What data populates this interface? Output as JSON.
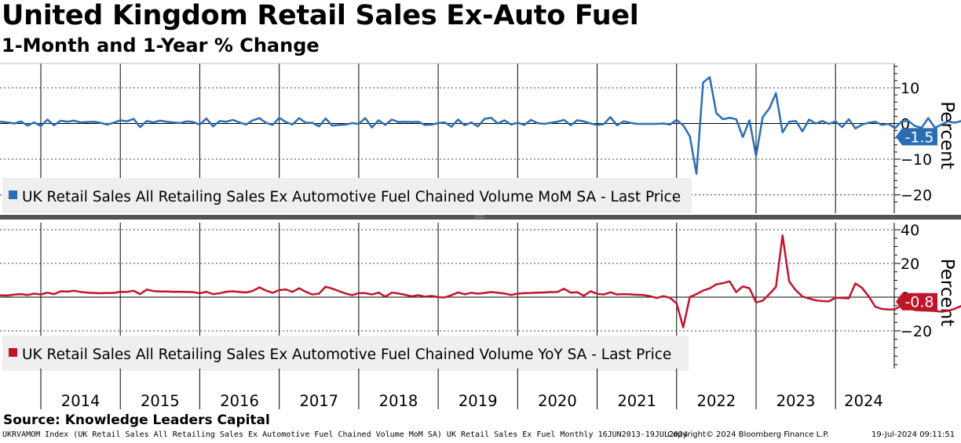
{
  "header": {
    "title": "United Kingdom Retail Sales Ex-Auto Fuel",
    "subtitle": "1-Month and 1-Year % Change"
  },
  "footer": {
    "source": "Source: Knowledge Leaders Capital",
    "ticker_info": "UKRVAMOM Index (UK Retail Sales All Retailing Sales Ex Automotive Fuel Chained Volume MoM SA) UK Retail Sales Ex Fuel  Monthly 16JUN2013-19JUL2024",
    "copyright": "Copyright© 2024 Bloomberg Finance L.P.",
    "timestamp": "19-Jul-2024 09:11:51"
  },
  "chart_data": [
    {
      "type": "line",
      "panel": "top",
      "legend": "UK Retail Sales All Retailing Sales Ex Automotive Fuel Chained Volume MoM SA - Last Price",
      "ylabel": "Percent",
      "ylim": [
        -23,
        16
      ],
      "yticks": [
        10,
        0,
        -10,
        -20
      ],
      "grid": true,
      "x_start": "2013-06",
      "last_value_label": "-1.5",
      "color": "#2a6db3",
      "series": [
        {
          "name": "UK Retail Sales All Retailing Sales Ex Automotive Fuel Chained Volume MoM SA - Last Price",
          "values": [
            0.5,
            0.5,
            0.3,
            0,
            0.6,
            -0.6,
            0.3,
            -0.7,
            1.1,
            -0.5,
            0.8,
            0.5,
            0.8,
            0.3,
            0.4,
            0.5,
            0.2,
            -0.3,
            0.2,
            0.9,
            0.6,
            1.3,
            -1.0,
            0.7,
            0.3,
            0.8,
            0.5,
            0.3,
            0.1,
            0.6,
            0.4,
            -0.3,
            1.4,
            -0.8,
            0.7,
            0.5,
            1.0,
            0.3,
            -0.3,
            0.9,
            1.5,
            0.2,
            -0.4,
            1.6,
            0.4,
            -0.3,
            1.5,
            0.2,
            0.2,
            -0.8,
            1.4,
            -0.6,
            -0.4,
            -0.3,
            0.1,
            -0.1,
            1.5,
            -1.1,
            0.9,
            -0.4,
            1.1,
            0.4,
            0.5,
            0.4,
            0.5,
            -0.4,
            -0.3,
            0.1,
            0.3,
            -0.9,
            1.1,
            -0.5,
            0.3,
            -0.8,
            1.3,
            1.6,
            0.0,
            0.9,
            -0.3,
            0.2,
            -0.4,
            1.0,
            0.1,
            -0.1,
            0.2,
            0.5,
            1.0,
            -0.5,
            0.9,
            0.6,
            0.0,
            -0.4,
            -0.2,
            1.8,
            -0.5,
            0.6,
            0.2,
            -0.1,
            -0.1,
            -0.1,
            -0.1,
            0.0,
            -0.3,
            1.0,
            -0.5,
            -3.6,
            -14.1,
            11.5,
            13.0,
            2.9,
            1.2,
            1.6,
            1.2,
            -3.8,
            0.9,
            -9.1,
            1.8,
            4.2,
            8.5,
            -2.5,
            0.5,
            0.7,
            -2.2,
            1.1,
            0.0,
            0.7,
            -0.1,
            0.6,
            -1.0,
            1.2,
            -1.4,
            -0.3,
            0.2,
            0.5,
            -0.4,
            -0.1,
            -1.3,
            0.6,
            0.7,
            -0.7,
            -1.2,
            1.5,
            -1.2,
            -0.3,
            0.6,
            0.2,
            0.7,
            -0.2,
            0.5,
            -1.1,
            1.1,
            -0.3,
            0.7,
            -1.3,
            0.2,
            1.6,
            -3.6,
            3.6,
            0.1,
            -0.3,
            -0.5,
            2.9,
            -1.5
          ]
        }
      ]
    },
    {
      "type": "line",
      "panel": "bottom",
      "legend": "UK Retail Sales All Retailing Sales Ex Automotive Fuel Chained Volume YoY SA - Last Price",
      "ylabel": "Percent",
      "ylim": [
        -40,
        45
      ],
      "yticks": [
        40,
        20,
        0,
        -20
      ],
      "grid": true,
      "x_start": "2013-06",
      "last_value_label": "-0.8",
      "color": "#c0142b",
      "series": [
        {
          "name": "UK Retail Sales All Retailing Sales Ex Automotive Fuel Chained Volume YoY SA - Last Price",
          "values": [
            1.0,
            1.1,
            1.0,
            1.5,
            1.8,
            1.3,
            2.1,
            1.6,
            2.7,
            1.8,
            3.5,
            3.3,
            3.8,
            3.1,
            2.7,
            2.5,
            2.3,
            2.5,
            2.5,
            3.2,
            3.1,
            3.8,
            1.8,
            4.5,
            3.6,
            3.4,
            3.4,
            3.2,
            3.2,
            3.1,
            3.0,
            2.3,
            3.2,
            1.8,
            2.3,
            3.2,
            3.5,
            3.1,
            2.8,
            3.7,
            5.8,
            3.9,
            2.6,
            4.2,
            4.6,
            3.1,
            5.3,
            3.2,
            1.6,
            2.1,
            6.2,
            5.1,
            3.6,
            2.2,
            1.2,
            2.4,
            2.4,
            1.6,
            2.7,
            0.3,
            2.7,
            2.2,
            1.4,
            0.5,
            1.2,
            0.3,
            0.7,
            0.0,
            -0.2,
            1.2,
            2.8,
            1.7,
            2.6,
            2.1,
            2.5,
            3.0,
            2.6,
            2.2,
            1.3,
            2.1,
            2.4,
            2.5,
            2.7,
            2.8,
            3.0,
            3.1,
            5.0,
            2.7,
            2.9,
            0.8,
            3.5,
            2.0,
            1.6,
            2.9,
            1.6,
            1.8,
            1.7,
            1.4,
            1.3,
            0.6,
            -0.5,
            0.6,
            -0.4,
            -3.7,
            -17.9,
            0.1,
            1.8,
            3.9,
            5.2,
            7.6,
            8.3,
            9.4,
            3.0,
            6.4,
            5.3,
            -3.1,
            -2.1,
            1.8,
            6.1,
            36.6,
            9.3,
            4.1,
            0.4,
            -0.8,
            -1.9,
            -2.3,
            -2.5,
            -0.3,
            -0.5,
            -0.7,
            8.2,
            5.5,
            0.5,
            -5.7,
            -7.0,
            -7.3,
            -7.2,
            -4.7,
            -6.3,
            -7.7,
            -7.9,
            -8.0,
            -8.2,
            -8.6,
            -8.1,
            -6.9,
            -5.2,
            -4.4,
            -4.0,
            -2.3,
            -2.1,
            -2.4,
            -2.7,
            -2.1,
            -0.9,
            -2.0,
            -2.8,
            -1.8,
            -2.6,
            -2.5,
            -2.6,
            0.8,
            -2.6,
            -0.9,
            -0.9,
            -0.2,
            -2.2,
            0.9,
            -0.8
          ]
        }
      ]
    }
  ],
  "x_axis": {
    "tick_labels": [
      "2014",
      "2015",
      "2016",
      "2017",
      "2018",
      "2019",
      "2020",
      "2021",
      "2022",
      "2023",
      "2024"
    ]
  }
}
